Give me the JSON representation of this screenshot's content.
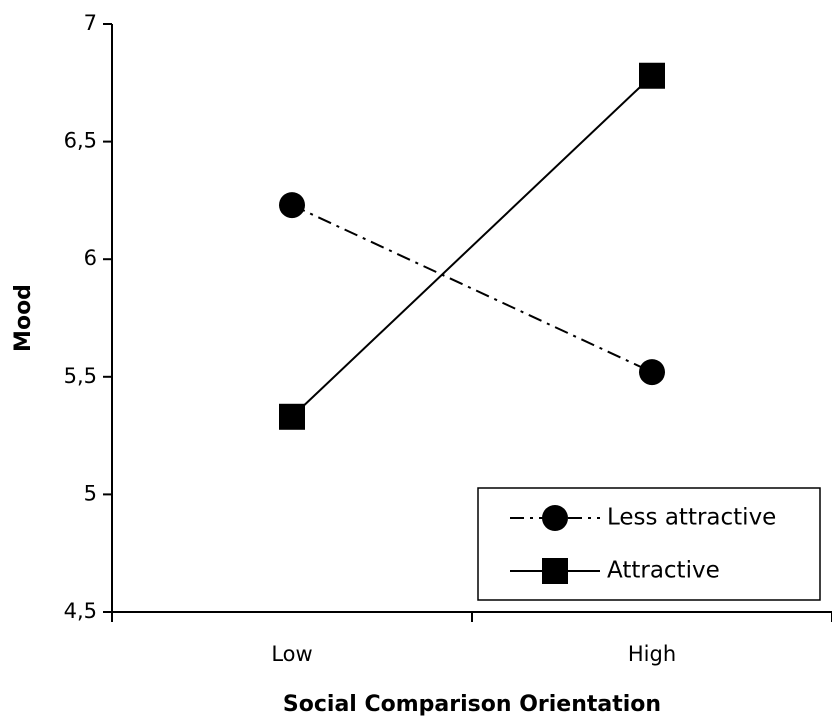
{
  "chart_data": {
    "type": "line",
    "categories": [
      "Low",
      "High"
    ],
    "series": [
      {
        "name": "Less attractive",
        "values": [
          6.23,
          5.52
        ],
        "marker": "circle",
        "line_style": "dash-dot",
        "color": "#000000"
      },
      {
        "name": "Attractive",
        "values": [
          5.33,
          6.78
        ],
        "marker": "square",
        "line_style": "solid",
        "color": "#000000"
      }
    ],
    "xlabel": "Social Comparison Orientation",
    "ylabel": "Mood",
    "ylim": [
      4.5,
      7
    ],
    "yticks": [
      "4,5",
      "5",
      "5,5",
      "6",
      "6,5",
      "7"
    ],
    "grid": false,
    "legend_position": "bottom-right"
  }
}
